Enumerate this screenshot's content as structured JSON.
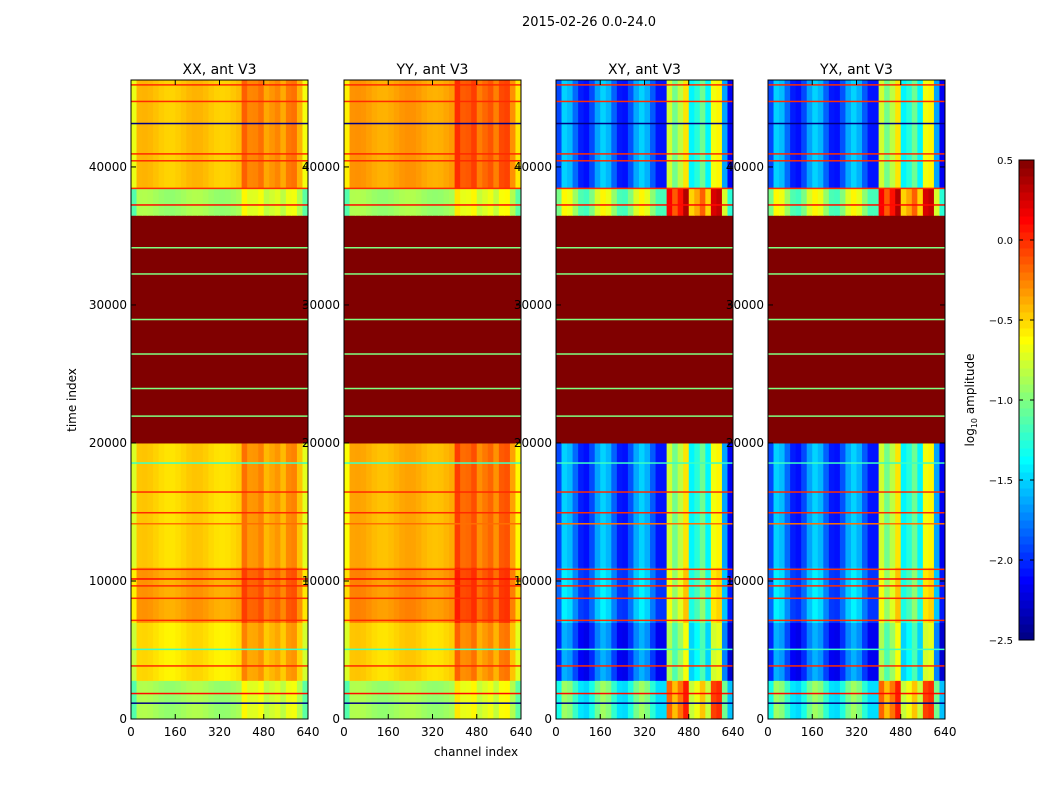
{
  "chart_data": {
    "type": "heatmap",
    "title": "2015-02-26 0.0-24.0",
    "xlabel": "channel index",
    "ylabel": "time index",
    "xlim": [
      0,
      640
    ],
    "ylim": [
      0,
      46300
    ],
    "xticks": [
      0,
      160,
      320,
      480,
      640
    ],
    "yticks": [
      0,
      10000,
      20000,
      30000,
      40000
    ],
    "colorbar": {
      "label": "log10 amplitude",
      "label_main": "log",
      "label_sub": "10",
      "label_rest": " amplitude",
      "range": [
        -2.5,
        0.5
      ],
      "ticks": [
        0.5,
        0.0,
        -0.5,
        -1.0,
        -1.5,
        -2.0,
        -2.5
      ],
      "tick_labels": [
        "0.5",
        "0.0",
        "−0.5",
        "−1.0",
        "−1.5",
        "−2.0",
        "−2.5"
      ],
      "colormap": "jet"
    },
    "panels": [
      {
        "title": "XX, ant V3",
        "kind": "auto",
        "bands": [
          [
            0,
            2800,
            -0.9
          ],
          [
            2800,
            7000,
            -0.55
          ],
          [
            7000,
            11000,
            -0.35
          ],
          [
            11000,
            20000,
            -0.5
          ],
          [
            20000,
            36500,
            0.5
          ],
          [
            36500,
            38500,
            -0.9
          ],
          [
            38500,
            46300,
            -0.45
          ]
        ],
        "hot_channels": [
          400,
          600
        ],
        "hot_boost": 0.25
      },
      {
        "title": "YY, ant V3",
        "kind": "auto",
        "bands": [
          [
            0,
            2800,
            -0.9
          ],
          [
            2800,
            7000,
            -0.5
          ],
          [
            7000,
            11000,
            -0.3
          ],
          [
            11000,
            20000,
            -0.4
          ],
          [
            20000,
            36500,
            0.5
          ],
          [
            36500,
            38500,
            -0.9
          ],
          [
            38500,
            46300,
            -0.35
          ]
        ],
        "hot_channels": [
          400,
          600
        ],
        "hot_boost": 0.3
      },
      {
        "title": "XY, ant V3",
        "kind": "cross",
        "bands": [
          [
            0,
            2800,
            -1.2
          ],
          [
            2800,
            7000,
            -1.9
          ],
          [
            7000,
            11000,
            -1.7
          ],
          [
            11000,
            20000,
            -1.8
          ],
          [
            20000,
            36500,
            0.5
          ],
          [
            36500,
            38500,
            -0.9
          ],
          [
            38500,
            46300,
            -1.8
          ]
        ],
        "hot_channels": [
          400,
          600
        ],
        "hot_boost": 1.1
      },
      {
        "title": "YX, ant V3",
        "kind": "cross",
        "bands": [
          [
            0,
            2800,
            -1.2
          ],
          [
            2800,
            7000,
            -1.9
          ],
          [
            7000,
            11000,
            -1.7
          ],
          [
            11000,
            20000,
            -1.8
          ],
          [
            20000,
            36500,
            0.5
          ],
          [
            36500,
            38500,
            -0.9
          ],
          [
            38500,
            46300,
            -1.8
          ]
        ],
        "hot_channels": [
          400,
          600
        ],
        "hot_boost": 1.1
      }
    ],
    "lines": [
      {
        "t": 1200,
        "value": -2.5
      },
      {
        "t": 1900,
        "value": 0.1
      },
      {
        "t": 3900,
        "value": 0.0
      },
      {
        "t": 5100,
        "value": -1.2
      },
      {
        "t": 7200,
        "value": 0.0
      },
      {
        "t": 8800,
        "value": 0.0
      },
      {
        "t": 9700,
        "value": 0.0
      },
      {
        "t": 10200,
        "value": 0.1
      },
      {
        "t": 10900,
        "value": 0.0
      },
      {
        "t": 14200,
        "value": -0.2
      },
      {
        "t": 15000,
        "value": 0.0
      },
      {
        "t": 16500,
        "value": 0.0
      },
      {
        "t": 18600,
        "value": -1.2
      },
      {
        "t": 22000,
        "value": -1.0
      },
      {
        "t": 24000,
        "value": -1.0
      },
      {
        "t": 26500,
        "value": -1.0
      },
      {
        "t": 29000,
        "value": -1.0
      },
      {
        "t": 32300,
        "value": -1.0
      },
      {
        "t": 34200,
        "value": -1.0
      },
      {
        "t": 37300,
        "value": 0.1
      },
      {
        "t": 38500,
        "value": 0.0
      },
      {
        "t": 40500,
        "value": 0.0
      },
      {
        "t": 41000,
        "value": 0.0
      },
      {
        "t": 43200,
        "value": -2.5
      },
      {
        "t": 44800,
        "value": 0.0
      },
      {
        "t": 46000,
        "value": 0.0
      }
    ]
  }
}
